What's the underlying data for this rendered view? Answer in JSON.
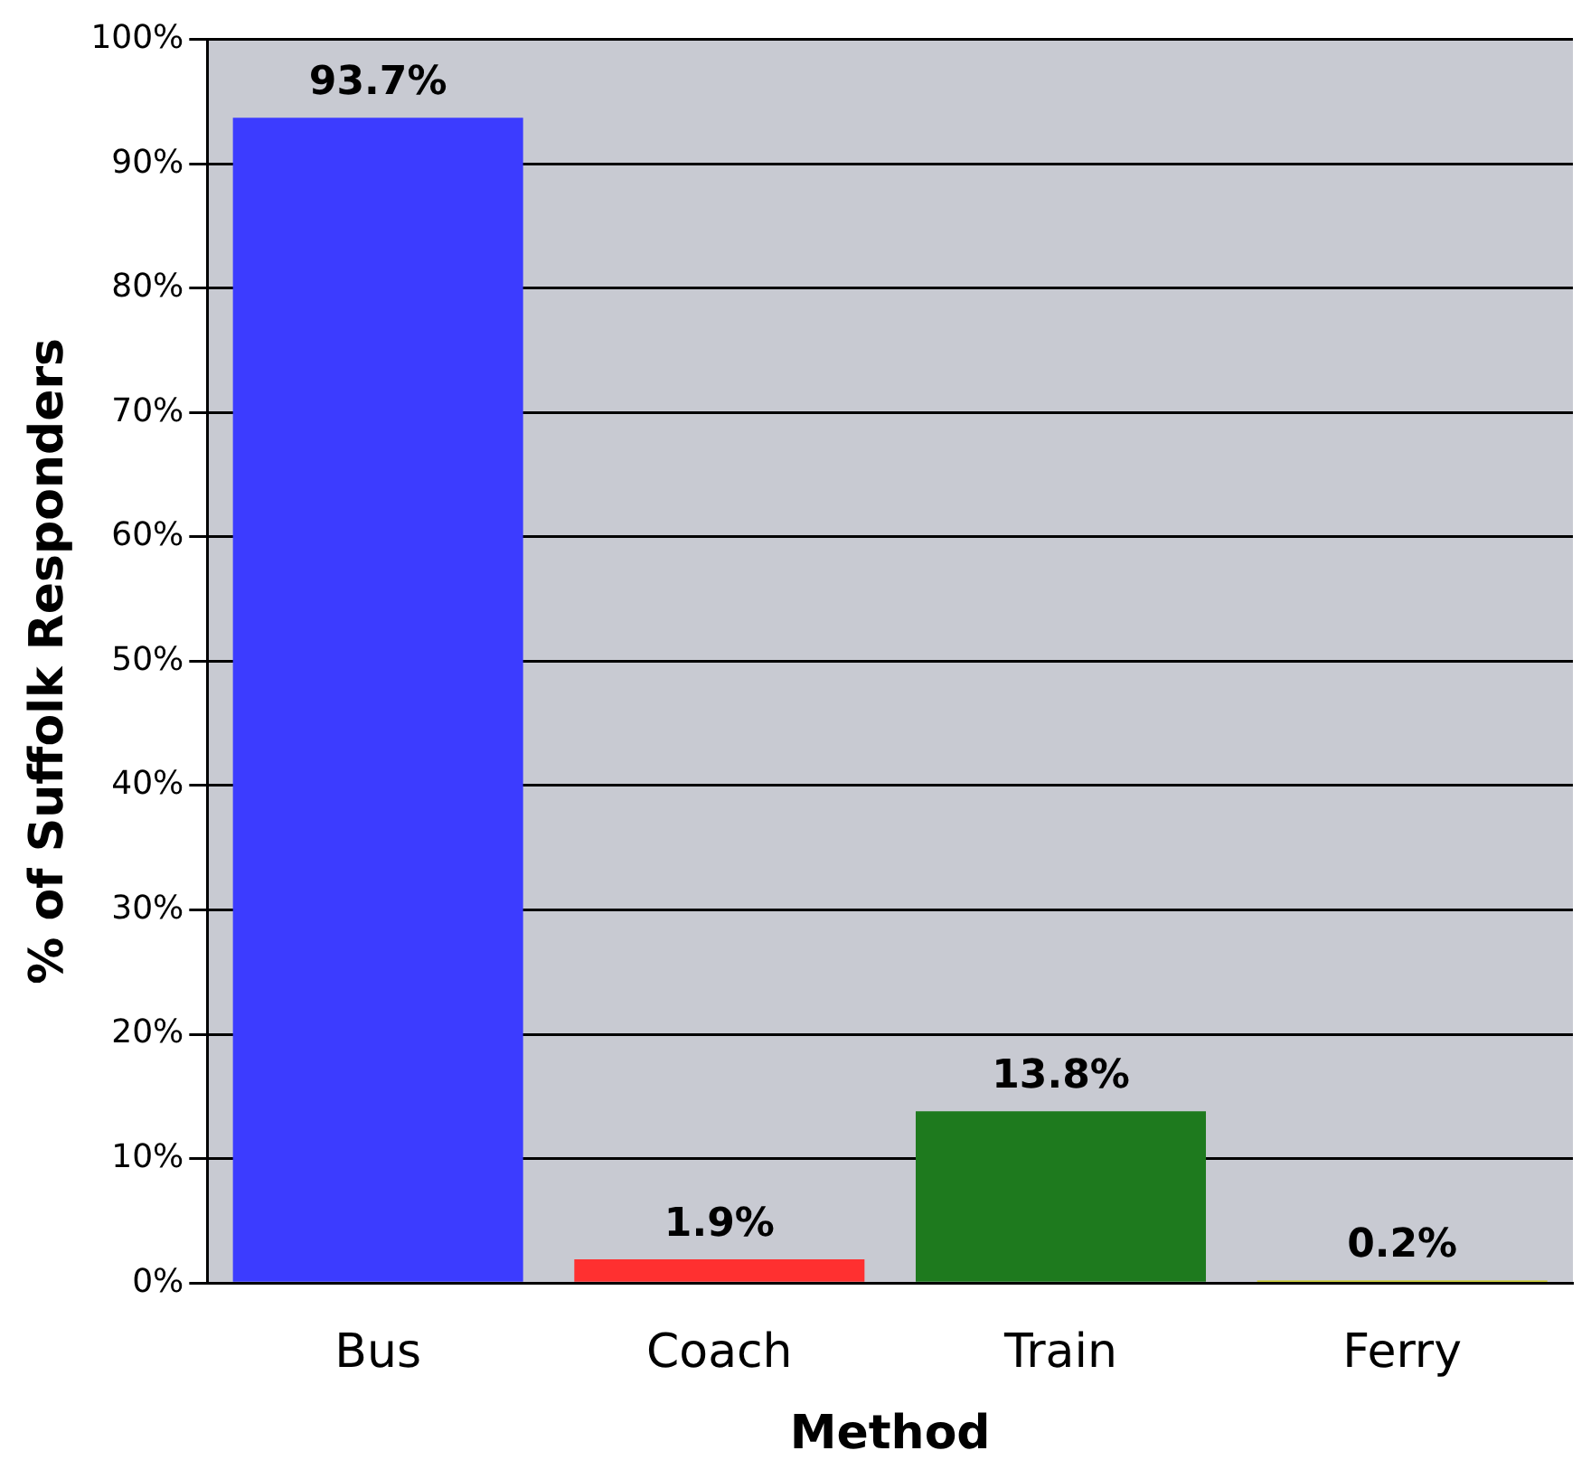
{
  "chart_data": {
    "type": "bar",
    "xlabel": "Method",
    "ylabel": "% of Suffolk Responders",
    "categories": [
      "Bus",
      "Coach",
      "Train",
      "Ferry"
    ],
    "values": [
      93.7,
      1.9,
      13.8,
      0.2
    ],
    "colors": [
      "#3c3cff",
      "#ff3030",
      "#1e7a1e",
      "#c8c800"
    ],
    "value_labels": [
      "93.7%",
      "1.9%",
      "13.8%",
      "0.2%"
    ],
    "ylim": [
      0,
      100
    ],
    "yticks": [
      {
        "value": 0,
        "label": "0%"
      },
      {
        "value": 10,
        "label": "10%"
      },
      {
        "value": 20,
        "label": "20%"
      },
      {
        "value": 30,
        "label": "30%"
      },
      {
        "value": 40,
        "label": "40%"
      },
      {
        "value": 50,
        "label": "50%"
      },
      {
        "value": 60,
        "label": "60%"
      },
      {
        "value": 70,
        "label": "70%"
      },
      {
        "value": 80,
        "label": "80%"
      },
      {
        "value": 90,
        "label": "90%"
      },
      {
        "value": 100,
        "label": "100%"
      }
    ],
    "grid": "y"
  }
}
